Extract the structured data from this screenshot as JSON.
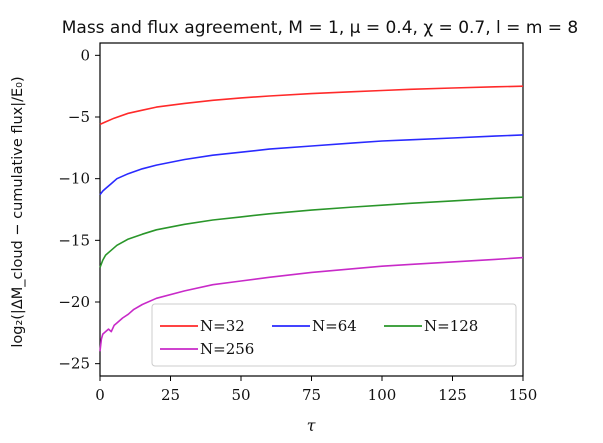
{
  "chart_data": {
    "type": "line",
    "title": "Mass and flux agreement, M = 1, μ = 0.4, χ = 0.7, l = m = 8",
    "xlabel": "τ",
    "ylabel": "log₂(|ΔM_cloud − cumulative flux|/E₀)",
    "xlim": [
      0,
      150
    ],
    "ylim": [
      -26,
      1
    ],
    "xticks": [
      0,
      25,
      50,
      75,
      100,
      125,
      150
    ],
    "yticks": [
      0,
      -5,
      -10,
      -15,
      -20,
      -25
    ],
    "xtick_labels": [
      "0",
      "25",
      "50",
      "75",
      "100",
      "125",
      "150"
    ],
    "ytick_labels": [
      "0",
      "−5",
      "−10",
      "−15",
      "−20",
      "−25"
    ],
    "grid": false,
    "legend_position": "lower-right",
    "series": [
      {
        "name": "N=32",
        "color": "#ff2a2a",
        "x": [
          0,
          2,
          5,
          10,
          15,
          20,
          30,
          40,
          50,
          60,
          75,
          90,
          100,
          110,
          125,
          140,
          150
        ],
        "y": [
          -5.6,
          -5.4,
          -5.1,
          -4.7,
          -4.45,
          -4.2,
          -3.9,
          -3.65,
          -3.45,
          -3.3,
          -3.1,
          -2.95,
          -2.85,
          -2.75,
          -2.65,
          -2.55,
          -2.5
        ]
      },
      {
        "name": "N=64",
        "color": "#2a2aff",
        "x": [
          0,
          1,
          2,
          4,
          6,
          10,
          15,
          20,
          30,
          40,
          50,
          60,
          75,
          90,
          100,
          110,
          125,
          140,
          150
        ],
        "y": [
          -11.3,
          -11.0,
          -10.8,
          -10.4,
          -10.0,
          -9.6,
          -9.2,
          -8.9,
          -8.45,
          -8.1,
          -7.85,
          -7.6,
          -7.35,
          -7.1,
          -6.95,
          -6.85,
          -6.7,
          -6.55,
          -6.45
        ]
      },
      {
        "name": "N=128",
        "color": "#2a962a",
        "x": [
          0,
          1,
          2,
          4,
          6,
          10,
          15,
          20,
          30,
          40,
          50,
          60,
          75,
          90,
          100,
          110,
          125,
          140,
          150
        ],
        "y": [
          -17.2,
          -16.6,
          -16.2,
          -15.8,
          -15.4,
          -14.9,
          -14.5,
          -14.15,
          -13.7,
          -13.35,
          -13.1,
          -12.85,
          -12.55,
          -12.3,
          -12.15,
          -12.0,
          -11.8,
          -11.6,
          -11.5
        ]
      },
      {
        "name": "N=256",
        "color": "#c82ac8",
        "x": [
          0,
          0.5,
          1,
          2,
          3,
          4,
          5,
          6,
          8,
          10,
          12,
          15,
          20,
          30,
          40,
          50,
          60,
          75,
          90,
          100,
          110,
          125,
          140,
          150
        ],
        "y": [
          -24.0,
          -23.0,
          -22.6,
          -22.4,
          -22.2,
          -22.4,
          -21.9,
          -21.7,
          -21.3,
          -21.0,
          -20.6,
          -20.2,
          -19.7,
          -19.1,
          -18.6,
          -18.3,
          -18.0,
          -17.6,
          -17.3,
          -17.1,
          -16.95,
          -16.75,
          -16.55,
          -16.4
        ]
      }
    ]
  }
}
